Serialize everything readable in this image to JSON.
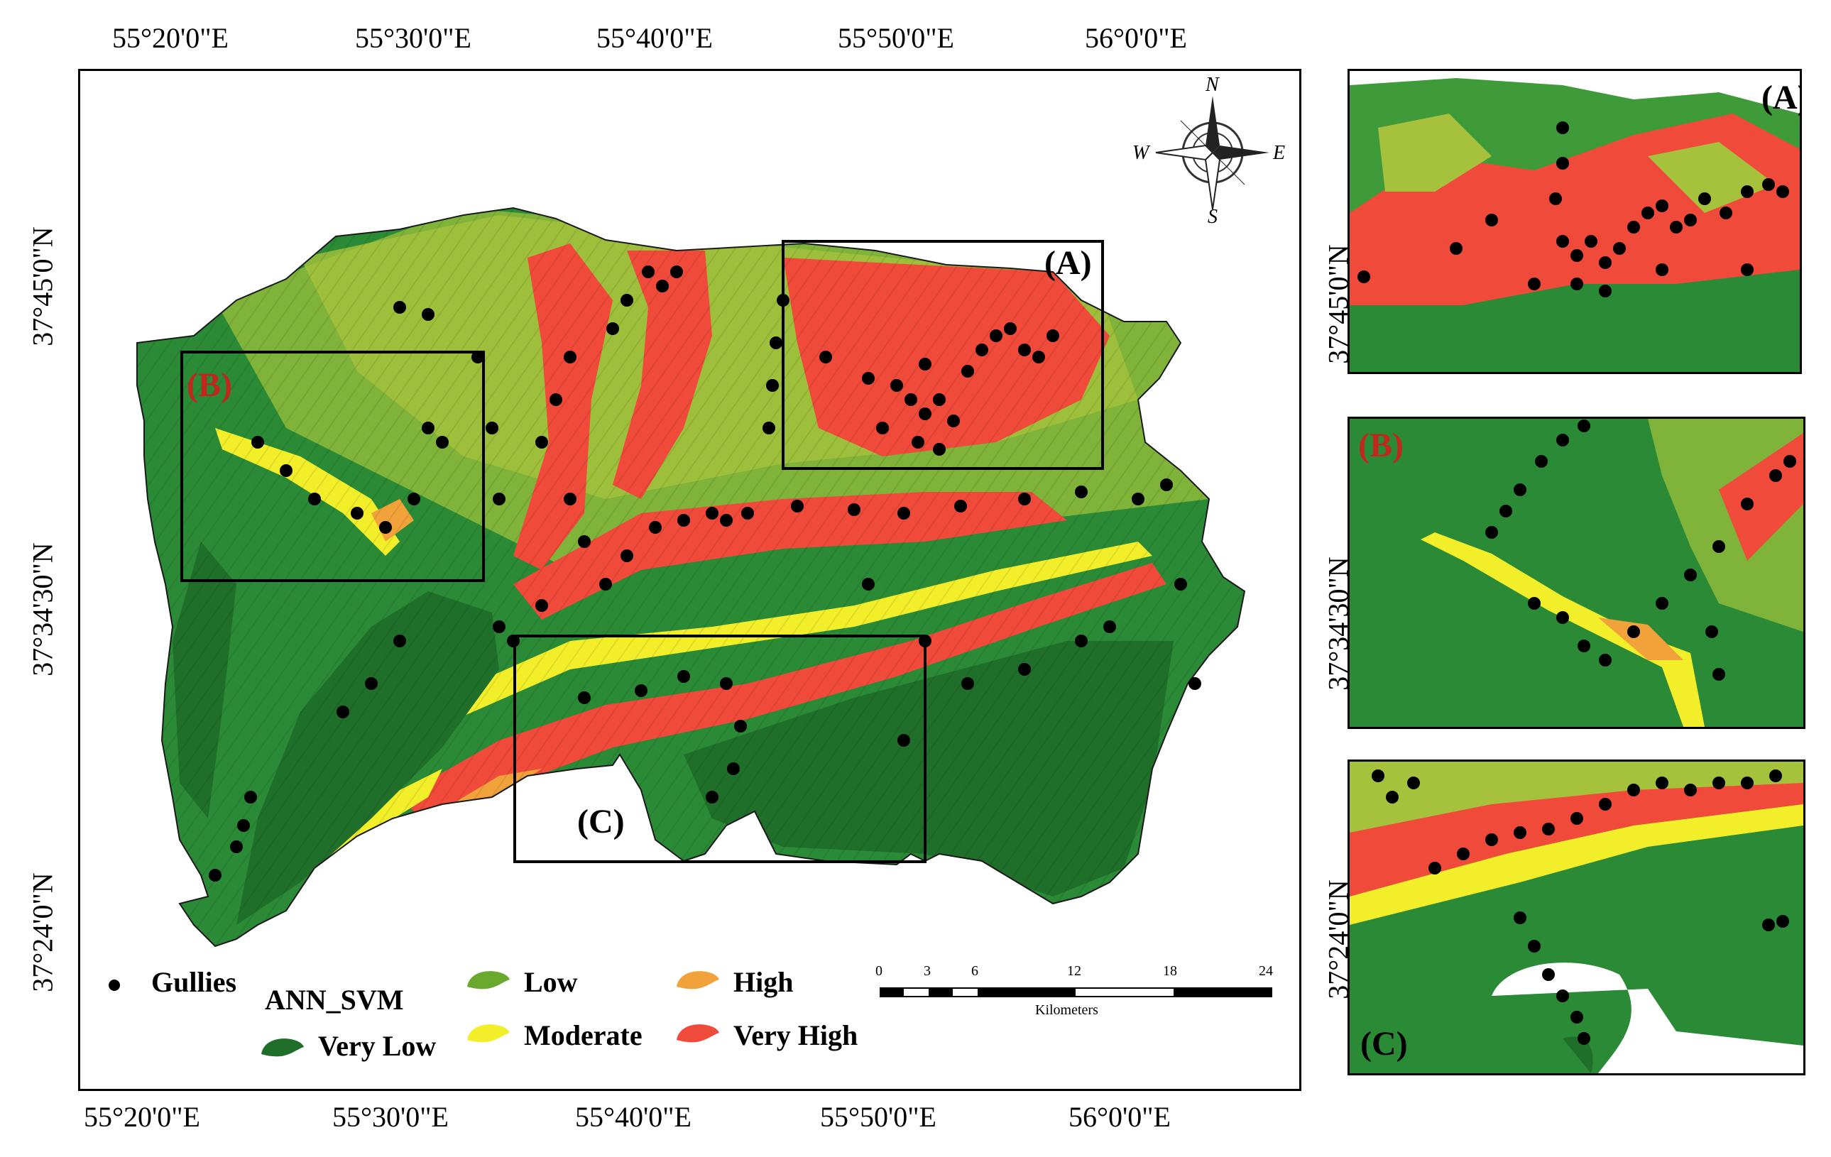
{
  "main_map": {
    "top_lon_labels": [
      "55°20'0\"E",
      "55°30'0\"E",
      "55°40'0\"E",
      "55°50'0\"E",
      "56°0'0\"E"
    ],
    "bottom_lon_labels": [
      "55°20'0\"E",
      "55°30'0\"E",
      "55°40'0\"E",
      "55°50'0\"E",
      "56°0'0\"E"
    ],
    "left_lat_labels": [
      "37°45'0\"N",
      "37°34'30\"N",
      "37°24'0\"N"
    ],
    "boxes": [
      {
        "label": "(A)",
        "color": "#000000"
      },
      {
        "label": "(B)",
        "color": "#c0281e"
      },
      {
        "label": "(C)",
        "color": "#000000"
      }
    ]
  },
  "insets": [
    {
      "label": "(A)",
      "label_color": "#000000"
    },
    {
      "label": "(B)",
      "label_color": "#c0281e"
    },
    {
      "label": "(C)",
      "label_color": "#000000"
    }
  ],
  "inset_lat_labels": [
    "37°45'0\"N",
    "37°34'30\"N",
    "37°24'0\"N"
  ],
  "north_arrow": {
    "icon": "compass-rose-icon",
    "n": "N",
    "e": "E",
    "s": "S",
    "w": "W"
  },
  "legend": {
    "gullies_label": "Gullies",
    "model_title": "ANN_SVM",
    "classes": [
      {
        "name": "Very Low",
        "color": "#1f6f2a"
      },
      {
        "name": "Low",
        "color": "#6aa82e"
      },
      {
        "name": "Moderate",
        "color": "#f2ee2a"
      },
      {
        "name": "High",
        "color": "#f2a23a"
      },
      {
        "name": "Very High",
        "color": "#f04a3a"
      }
    ]
  },
  "scale_bar": {
    "ticks": [
      "0",
      "3",
      "6",
      "12",
      "18",
      "24"
    ],
    "unit": "Kilometers"
  }
}
